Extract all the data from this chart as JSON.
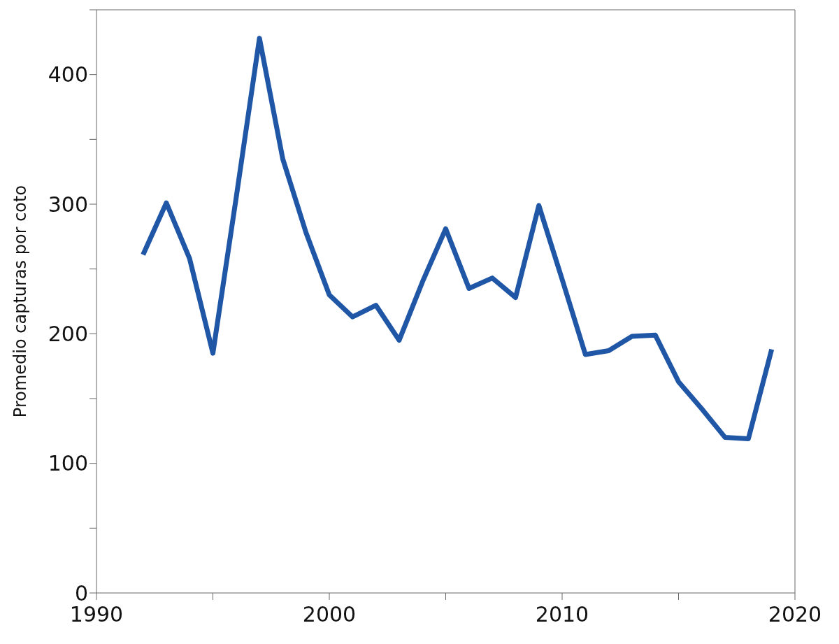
{
  "chart_data": {
    "type": "line",
    "ylabel": "Promedio capturas por coto",
    "x": [
      1992,
      1993,
      1994,
      1995,
      1996,
      1997,
      1998,
      1999,
      2000,
      2001,
      2002,
      2003,
      2004,
      2005,
      2006,
      2007,
      2008,
      2009,
      2010,
      2011,
      2012,
      2013,
      2014,
      2015,
      2016,
      2017,
      2018,
      2019
    ],
    "series": [
      {
        "color": "#1f56a5",
        "values": [
          261,
          301,
          258,
          185,
          305,
          428,
          335,
          278,
          230,
          213,
          222,
          195,
          240,
          281,
          235,
          243,
          228,
          299,
          242,
          184,
          187,
          198,
          199,
          163,
          142,
          120,
          119,
          188
        ]
      }
    ],
    "xlim": [
      1990,
      2020
    ],
    "xticks": [
      1990,
      {
        "value": 1995,
        "label": null
      },
      2000,
      {
        "value": 2005,
        "label": null
      },
      2010,
      {
        "value": 2015,
        "label": null
      },
      2020
    ],
    "ylim": [
      0,
      450
    ],
    "yticks": [
      0,
      {
        "value": 50,
        "label": null
      },
      100,
      {
        "value": 150,
        "label": null
      },
      200,
      {
        "value": 250,
        "label": null
      },
      300,
      {
        "value": 350,
        "label": null
      },
      400,
      {
        "value": 450,
        "label": null
      }
    ],
    "grid": false,
    "legend": false,
    "marker": "none",
    "line_style": "solid"
  }
}
